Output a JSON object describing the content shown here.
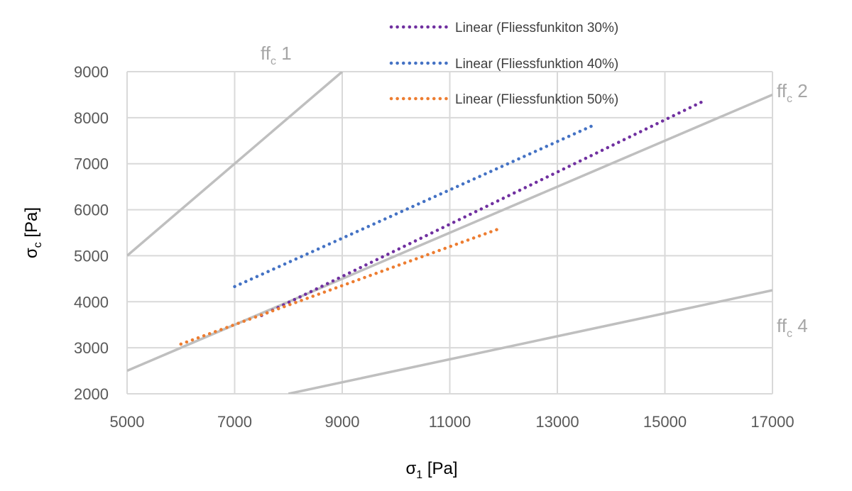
{
  "chart_data": {
    "type": "line",
    "xlabel": {
      "base": "σ",
      "sub": "1",
      "unit": " [Pa]"
    },
    "ylabel": {
      "base": "σ",
      "sub": "c",
      "unit": " [Pa]"
    },
    "xlim": [
      5000,
      17000
    ],
    "ylim": [
      2000,
      9000
    ],
    "x_ticks": [
      5000,
      7000,
      9000,
      11000,
      13000,
      15000,
      17000
    ],
    "y_ticks": [
      2000,
      3000,
      4000,
      5000,
      6000,
      7000,
      8000,
      9000
    ],
    "x_tick_labels": [
      "5000",
      "7000",
      "9000",
      "11000",
      "13000",
      "15000",
      "17000"
    ],
    "y_tick_labels": [
      "2000",
      "3000",
      "4000",
      "5000",
      "6000",
      "7000",
      "8000",
      "9000"
    ],
    "grid": true,
    "legend_position": "top-right",
    "reference_lines": [
      {
        "label": {
          "base": "ff",
          "sub": "c",
          "num": " 1"
        },
        "color": "#bfbfbf",
        "x": [
          5000,
          9000
        ],
        "y": [
          5000,
          9000
        ]
      },
      {
        "label": {
          "base": "ff",
          "sub": "c",
          "num": " 2"
        },
        "color": "#bfbfbf",
        "x": [
          5000,
          17000
        ],
        "y": [
          2500,
          8500
        ]
      },
      {
        "label": {
          "base": "ff",
          "sub": "c",
          "num": " 4"
        },
        "color": "#bfbfbf",
        "x": [
          8000,
          17000
        ],
        "y": [
          2000,
          4250
        ]
      }
    ],
    "series": [
      {
        "name": "Linear (Fliessfunkiton 30%)",
        "color": "#7030a0",
        "style": "dotted",
        "x": [
          7500,
          15700
        ],
        "y": [
          3700,
          8350
        ]
      },
      {
        "name": "Linear (Fliessfunktion 40%)",
        "color": "#4472c4",
        "style": "dotted",
        "x": [
          7000,
          13700
        ],
        "y": [
          4330,
          7850
        ]
      },
      {
        "name": "Linear (Fliessfunktion 50%)",
        "color": "#ed7d31",
        "style": "dotted",
        "x": [
          6000,
          11950
        ],
        "y": [
          3080,
          5600
        ]
      }
    ]
  }
}
